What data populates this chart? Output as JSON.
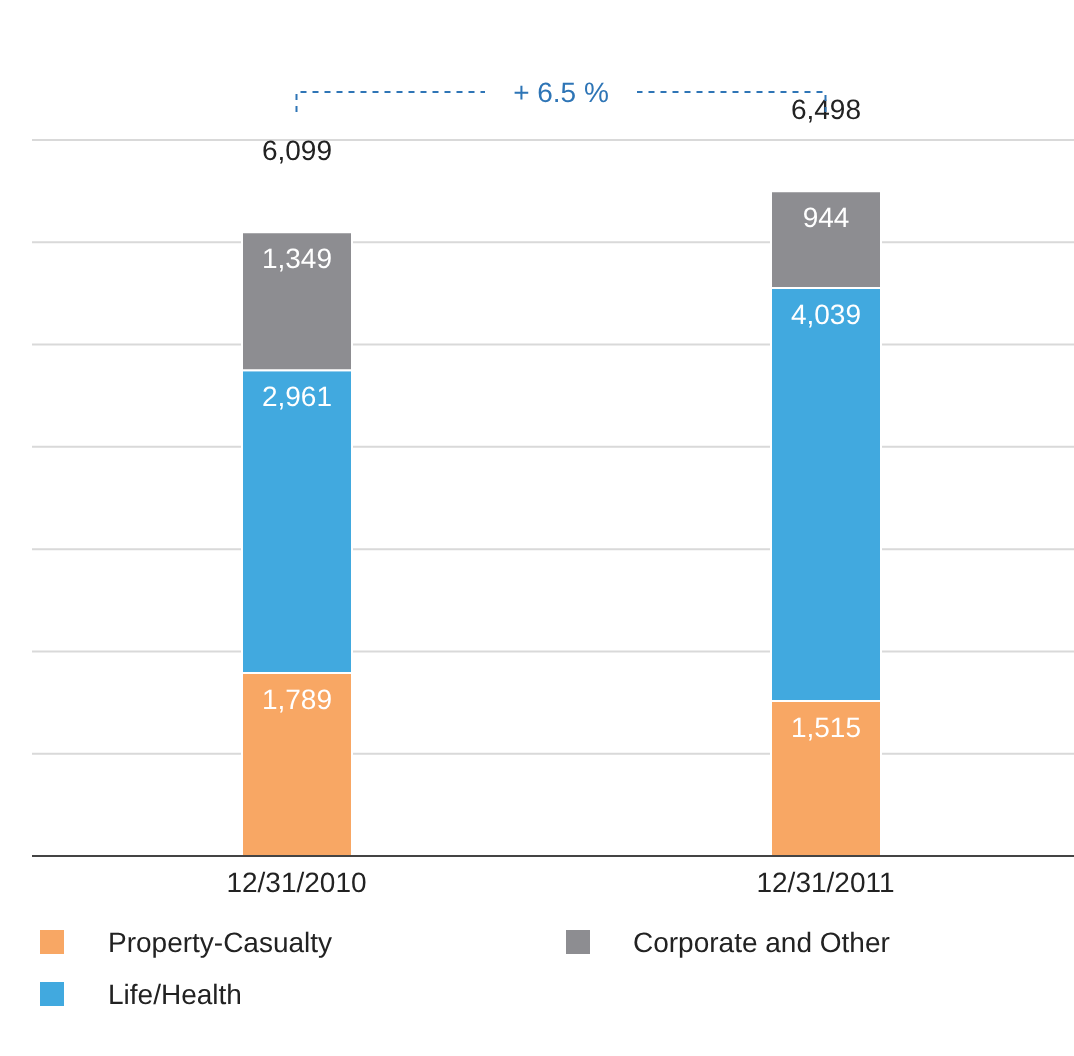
{
  "chart_data": {
    "type": "bar",
    "stacked": true,
    "categories": [
      "12/31/2010",
      "12/31/2011"
    ],
    "series": [
      {
        "name": "Property-Casualty",
        "color": "#f8a764",
        "values": [
          1789,
          1515
        ],
        "value_labels": [
          "1,789",
          "1,515"
        ]
      },
      {
        "name": "Life/Health",
        "color": "#41a9df",
        "values": [
          2961,
          4039
        ],
        "value_labels": [
          "2,961",
          "4,039"
        ]
      },
      {
        "name": "Corporate and Other",
        "color": "#8d8d91",
        "values": [
          1349,
          944
        ],
        "value_labels": [
          "1,349",
          "944"
        ]
      }
    ],
    "totals": [
      "6,099",
      "6,498"
    ],
    "ylim": [
      0,
      7000
    ],
    "yticks": [
      {
        "value": 0,
        "label": null
      },
      {
        "value": 1000,
        "label": null
      },
      {
        "value": 2000,
        "label": null
      },
      {
        "value": 3000,
        "label": null
      },
      {
        "value": 4000,
        "label": null
      },
      {
        "value": 5000,
        "label": null
      },
      {
        "value": 6000,
        "label": null
      },
      {
        "value": 7000,
        "label": null
      }
    ],
    "tick_labels": "x",
    "grid": "y",
    "legend": "bottom",
    "annotations": [
      "+ 6.5 %"
    ]
  }
}
